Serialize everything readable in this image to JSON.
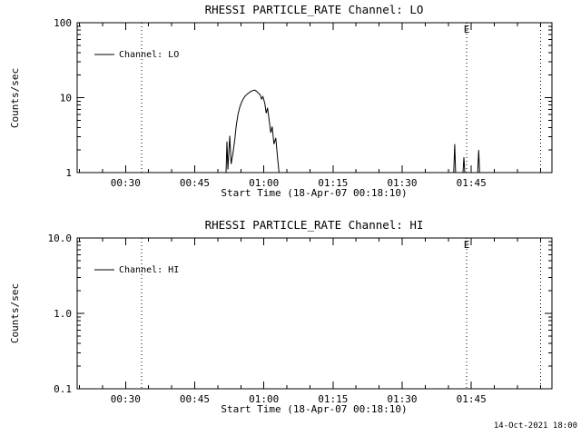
{
  "page": {
    "background": "#ffffff",
    "foreground": "#000000",
    "timestamp": "14-Oct-2021 18:00"
  },
  "chart_data": [
    {
      "type": "line",
      "title": "RHESSI PARTICLE_RATE Channel: LO",
      "xlabel": "Start Time (18-Apr-07 00:18:10)",
      "ylabel": "Counts/sec",
      "y_scale": "log",
      "ylim": [
        1,
        100
      ],
      "ytick_values": [
        1,
        10,
        100
      ],
      "ytick_labels": [
        "1",
        "10",
        "100"
      ],
      "xlim_minutes": [
        19.5,
        122.5
      ],
      "xtick_minutes": [
        30,
        45,
        60,
        75,
        90,
        105
      ],
      "xtick_labels": [
        "00:30",
        "00:45",
        "01:00",
        "01:15",
        "01:30",
        "01:45"
      ],
      "x_minor_step_minutes": 5,
      "grid": false,
      "legend_label": "Channel: LO",
      "legend_position": "upper-left-inside",
      "flag_label": "E",
      "flag_label_minute": 104,
      "flag_lines_minutes": [
        33.5,
        104,
        120
      ],
      "series": [
        {
          "name": "Channel: LO",
          "color": "#000000",
          "points": [
            [
              19.5,
              1
            ],
            [
              51.8,
              1
            ],
            [
              52.0,
              2.6
            ],
            [
              52.2,
              1.1
            ],
            [
              52.6,
              3.1
            ],
            [
              52.9,
              1.3
            ],
            [
              53.3,
              1.8
            ],
            [
              53.7,
              2.8
            ],
            [
              54.0,
              4.2
            ],
            [
              54.4,
              6.0
            ],
            [
              54.8,
              7.5
            ],
            [
              55.2,
              8.8
            ],
            [
              55.6,
              9.8
            ],
            [
              56.0,
              10.6
            ],
            [
              56.5,
              11.3
            ],
            [
              57.0,
              11.9
            ],
            [
              57.5,
              12.4
            ],
            [
              58.0,
              12.6
            ],
            [
              58.4,
              12.2
            ],
            [
              58.8,
              11.5
            ],
            [
              59.2,
              10.9
            ],
            [
              59.5,
              9.6
            ],
            [
              59.8,
              10.3
            ],
            [
              60.2,
              8.4
            ],
            [
              60.5,
              6.2
            ],
            [
              60.8,
              7.3
            ],
            [
              61.2,
              4.8
            ],
            [
              61.5,
              3.4
            ],
            [
              61.8,
              4.1
            ],
            [
              62.2,
              2.4
            ],
            [
              62.6,
              2.9
            ],
            [
              63.0,
              1.5
            ],
            [
              63.3,
              1
            ],
            [
              98.0,
              1
            ],
            [
              101.2,
              1
            ],
            [
              101.4,
              2.4
            ],
            [
              101.6,
              1
            ],
            [
              103.2,
              1
            ],
            [
              103.4,
              1.6
            ],
            [
              103.6,
              1
            ],
            [
              106.4,
              1
            ],
            [
              106.6,
              2.0
            ],
            [
              106.8,
              1
            ],
            [
              122.5,
              1
            ]
          ]
        }
      ]
    },
    {
      "type": "line",
      "title": "RHESSI PARTICLE_RATE Channel: HI",
      "xlabel": "Start Time (18-Apr-07 00:18:10)",
      "ylabel": "Counts/sec",
      "y_scale": "log",
      "ylim": [
        0.1,
        10
      ],
      "ytick_values": [
        0.1,
        1,
        10
      ],
      "ytick_labels": [
        "0.1",
        "1.0",
        "10.0"
      ],
      "xlim_minutes": [
        19.5,
        122.5
      ],
      "xtick_minutes": [
        30,
        45,
        60,
        75,
        90,
        105
      ],
      "xtick_labels": [
        "00:30",
        "00:45",
        "01:00",
        "01:15",
        "01:30",
        "01:45"
      ],
      "x_minor_step_minutes": 5,
      "grid": false,
      "legend_label": "Channel: HI",
      "legend_position": "upper-left-inside",
      "flag_label": "E",
      "flag_label_minute": 104,
      "flag_lines_minutes": [
        33.5,
        104,
        120
      ],
      "series": [
        {
          "name": "Channel: HI",
          "color": "#000000",
          "points": []
        }
      ]
    }
  ]
}
